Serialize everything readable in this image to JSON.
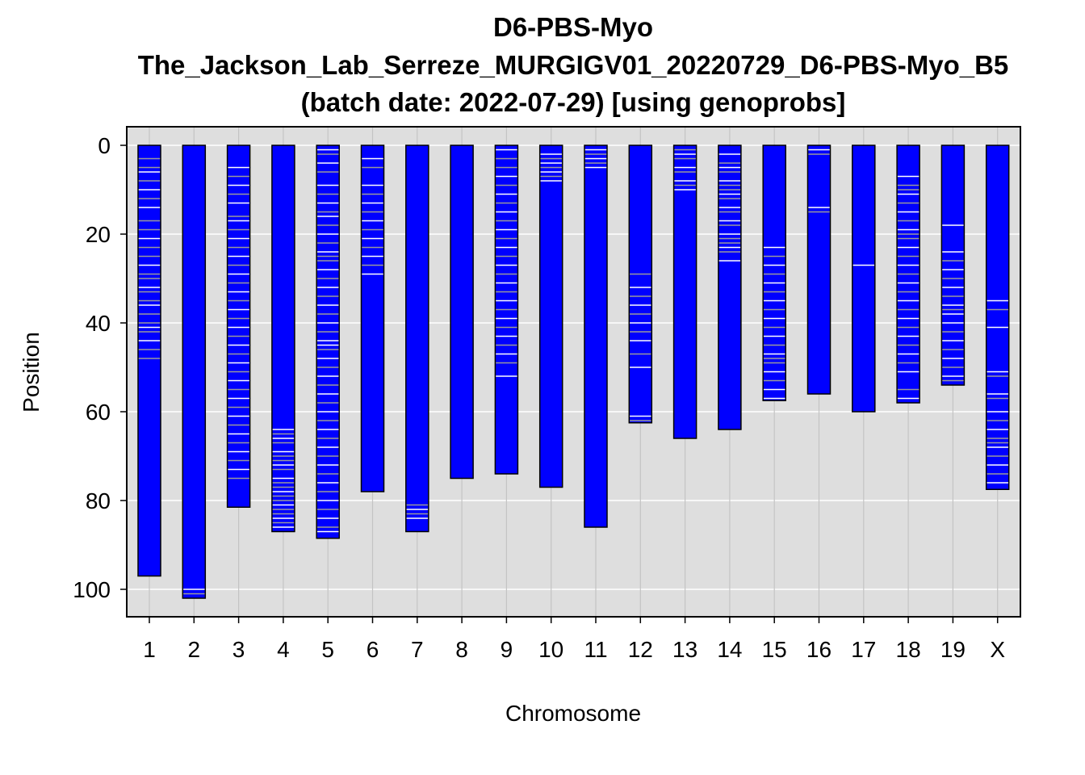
{
  "chart_data": {
    "type": "genome-ideogram",
    "title_lines": [
      "D6-PBS-Myo",
      "The_Jackson_Lab_Serreze_MURGIGV01_20220729_D6-PBS-Myo_B5",
      "(batch date: 2022-07-29) [using genoprobs]"
    ],
    "xlabel": "Chromosome",
    "ylabel": "Position",
    "ylim": [
      0,
      106
    ],
    "y_ticks": [
      0,
      20,
      40,
      60,
      80,
      100
    ],
    "y_reversed": true,
    "grid": true,
    "colors": {
      "background": "#dedede",
      "gridline": "#ffffff",
      "bar_fill": "#0000ff",
      "bar_outline": "#000000",
      "line_white": "#ffffff",
      "line_gray": "#9a9a9a"
    },
    "chromosomes": [
      {
        "name": "1",
        "length": 97,
        "white": [
          6,
          10,
          14,
          21,
          27,
          32,
          36,
          41,
          44
        ],
        "gray": [
          3,
          5,
          8,
          12,
          17,
          19,
          23,
          25,
          29,
          30,
          33,
          35,
          38,
          40,
          42,
          46,
          48
        ]
      },
      {
        "name": "2",
        "length": 102,
        "white": [
          100
        ],
        "gray": [
          101
        ]
      },
      {
        "name": "3",
        "length": 81.5,
        "white": [
          5,
          9,
          13,
          17,
          21,
          25,
          29,
          33,
          37,
          41,
          45,
          49,
          53,
          57,
          61,
          65,
          69,
          73
        ],
        "gray": [
          7,
          11,
          16,
          19,
          23,
          27,
          31,
          35,
          39,
          43,
          47,
          51,
          55,
          59,
          63,
          67,
          71,
          75
        ]
      },
      {
        "name": "4",
        "length": 87,
        "white": [
          64,
          66,
          69,
          72,
          75,
          78,
          81,
          84,
          86
        ],
        "gray": [
          65,
          67,
          70,
          71,
          73,
          76,
          77,
          79,
          80,
          82,
          83,
          85
        ]
      },
      {
        "name": "5",
        "length": 88.5,
        "white": [
          1,
          4,
          9,
          13,
          16,
          20,
          24,
          28,
          32,
          36,
          40,
          44,
          45,
          48,
          52,
          56,
          60,
          64,
          68,
          72,
          76,
          80,
          84,
          87
        ],
        "gray": [
          2,
          6,
          11,
          15,
          18,
          22,
          25,
          26,
          30,
          34,
          38,
          42,
          46,
          50,
          54,
          58,
          62,
          66,
          70,
          74,
          78,
          82,
          86
        ]
      },
      {
        "name": "6",
        "length": 78,
        "white": [
          3,
          9,
          13,
          17,
          21,
          25,
          29
        ],
        "gray": [
          5,
          11,
          15,
          19,
          23,
          27
        ]
      },
      {
        "name": "7",
        "length": 87,
        "white": [
          82,
          84
        ],
        "gray": [
          81,
          83
        ]
      },
      {
        "name": "8",
        "length": 75,
        "white": [],
        "gray": []
      },
      {
        "name": "9",
        "length": 74,
        "white": [
          1,
          7,
          11,
          15,
          19,
          23,
          27,
          31,
          35,
          39,
          43,
          47,
          52
        ],
        "gray": [
          3,
          5,
          9,
          13,
          17,
          21,
          25,
          29,
          33,
          37,
          41,
          45,
          49
        ]
      },
      {
        "name": "10",
        "length": 77,
        "white": [
          2,
          4,
          6,
          8
        ],
        "gray": [
          3,
          5,
          7
        ]
      },
      {
        "name": "11",
        "length": 86,
        "white": [
          1,
          3,
          5
        ],
        "gray": [
          2,
          4
        ]
      },
      {
        "name": "12",
        "length": 62.5,
        "white": [
          32,
          36,
          40,
          44,
          50,
          61
        ],
        "gray": [
          29,
          34,
          38,
          42,
          47,
          62
        ]
      },
      {
        "name": "13",
        "length": 66,
        "white": [
          2,
          5,
          8,
          10
        ],
        "gray": [
          1,
          3,
          6,
          9
        ]
      },
      {
        "name": "14",
        "length": 64,
        "white": [
          2,
          5,
          8,
          11,
          14,
          17,
          20,
          23,
          26
        ],
        "gray": [
          4,
          6,
          9,
          10,
          12,
          15,
          18,
          21,
          22,
          24
        ]
      },
      {
        "name": "15",
        "length": 57.5,
        "white": [
          23,
          27,
          31,
          35,
          39,
          43,
          47,
          51,
          55,
          57
        ],
        "gray": [
          25,
          29,
          33,
          37,
          41,
          45,
          48,
          49,
          53
        ]
      },
      {
        "name": "16",
        "length": 56,
        "white": [
          1,
          14
        ],
        "gray": [
          2,
          15
        ]
      },
      {
        "name": "17",
        "length": 60,
        "white": [
          27
        ],
        "gray": []
      },
      {
        "name": "18",
        "length": 58,
        "white": [
          7,
          11,
          15,
          19,
          23,
          27,
          31,
          35,
          39,
          43,
          47,
          51,
          57
        ],
        "gray": [
          9,
          10,
          13,
          17,
          20,
          21,
          25,
          29,
          33,
          37,
          41,
          45,
          49,
          55
        ]
      },
      {
        "name": "19",
        "length": 54,
        "white": [
          18,
          24,
          28,
          32,
          36,
          38,
          40,
          44,
          48,
          52
        ],
        "gray": [
          26,
          30,
          34,
          37,
          42,
          46,
          50,
          53
        ]
      },
      {
        "name": "X",
        "length": 77.5,
        "white": [
          35,
          41,
          51,
          56,
          60,
          64,
          68,
          72,
          76
        ],
        "gray": [
          37,
          52,
          57,
          62,
          66,
          67,
          70,
          74
        ]
      }
    ]
  }
}
